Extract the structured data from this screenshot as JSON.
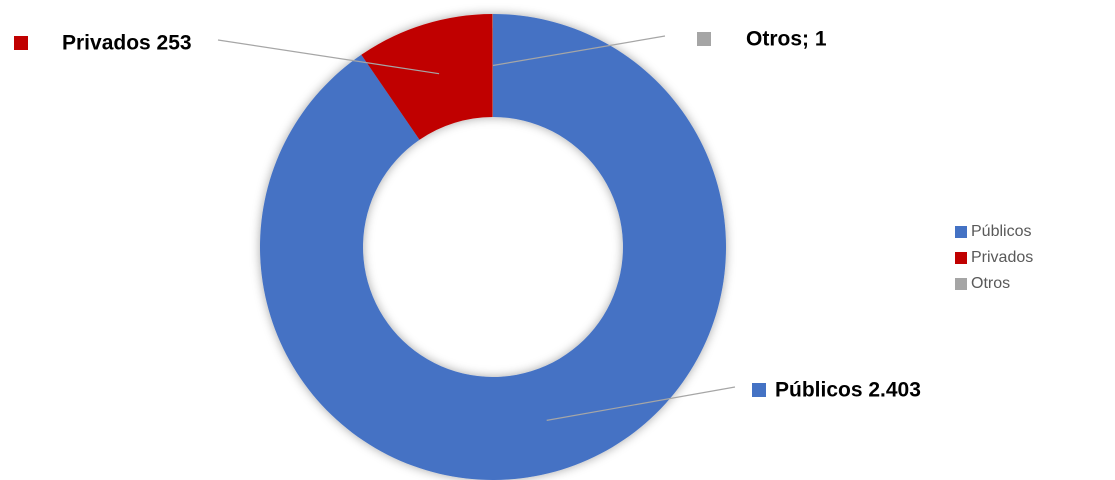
{
  "chart_data": {
    "type": "donut",
    "categories": [
      "Públicos",
      "Privados",
      "Otros"
    ],
    "values": [
      2403,
      253,
      1
    ],
    "value_labels": [
      "Públicos 2.403",
      "Privados 253",
      "Otros; 1"
    ],
    "colors": [
      "#4472c4",
      "#c00000",
      "#a5a5a5"
    ],
    "legend": "right"
  }
}
